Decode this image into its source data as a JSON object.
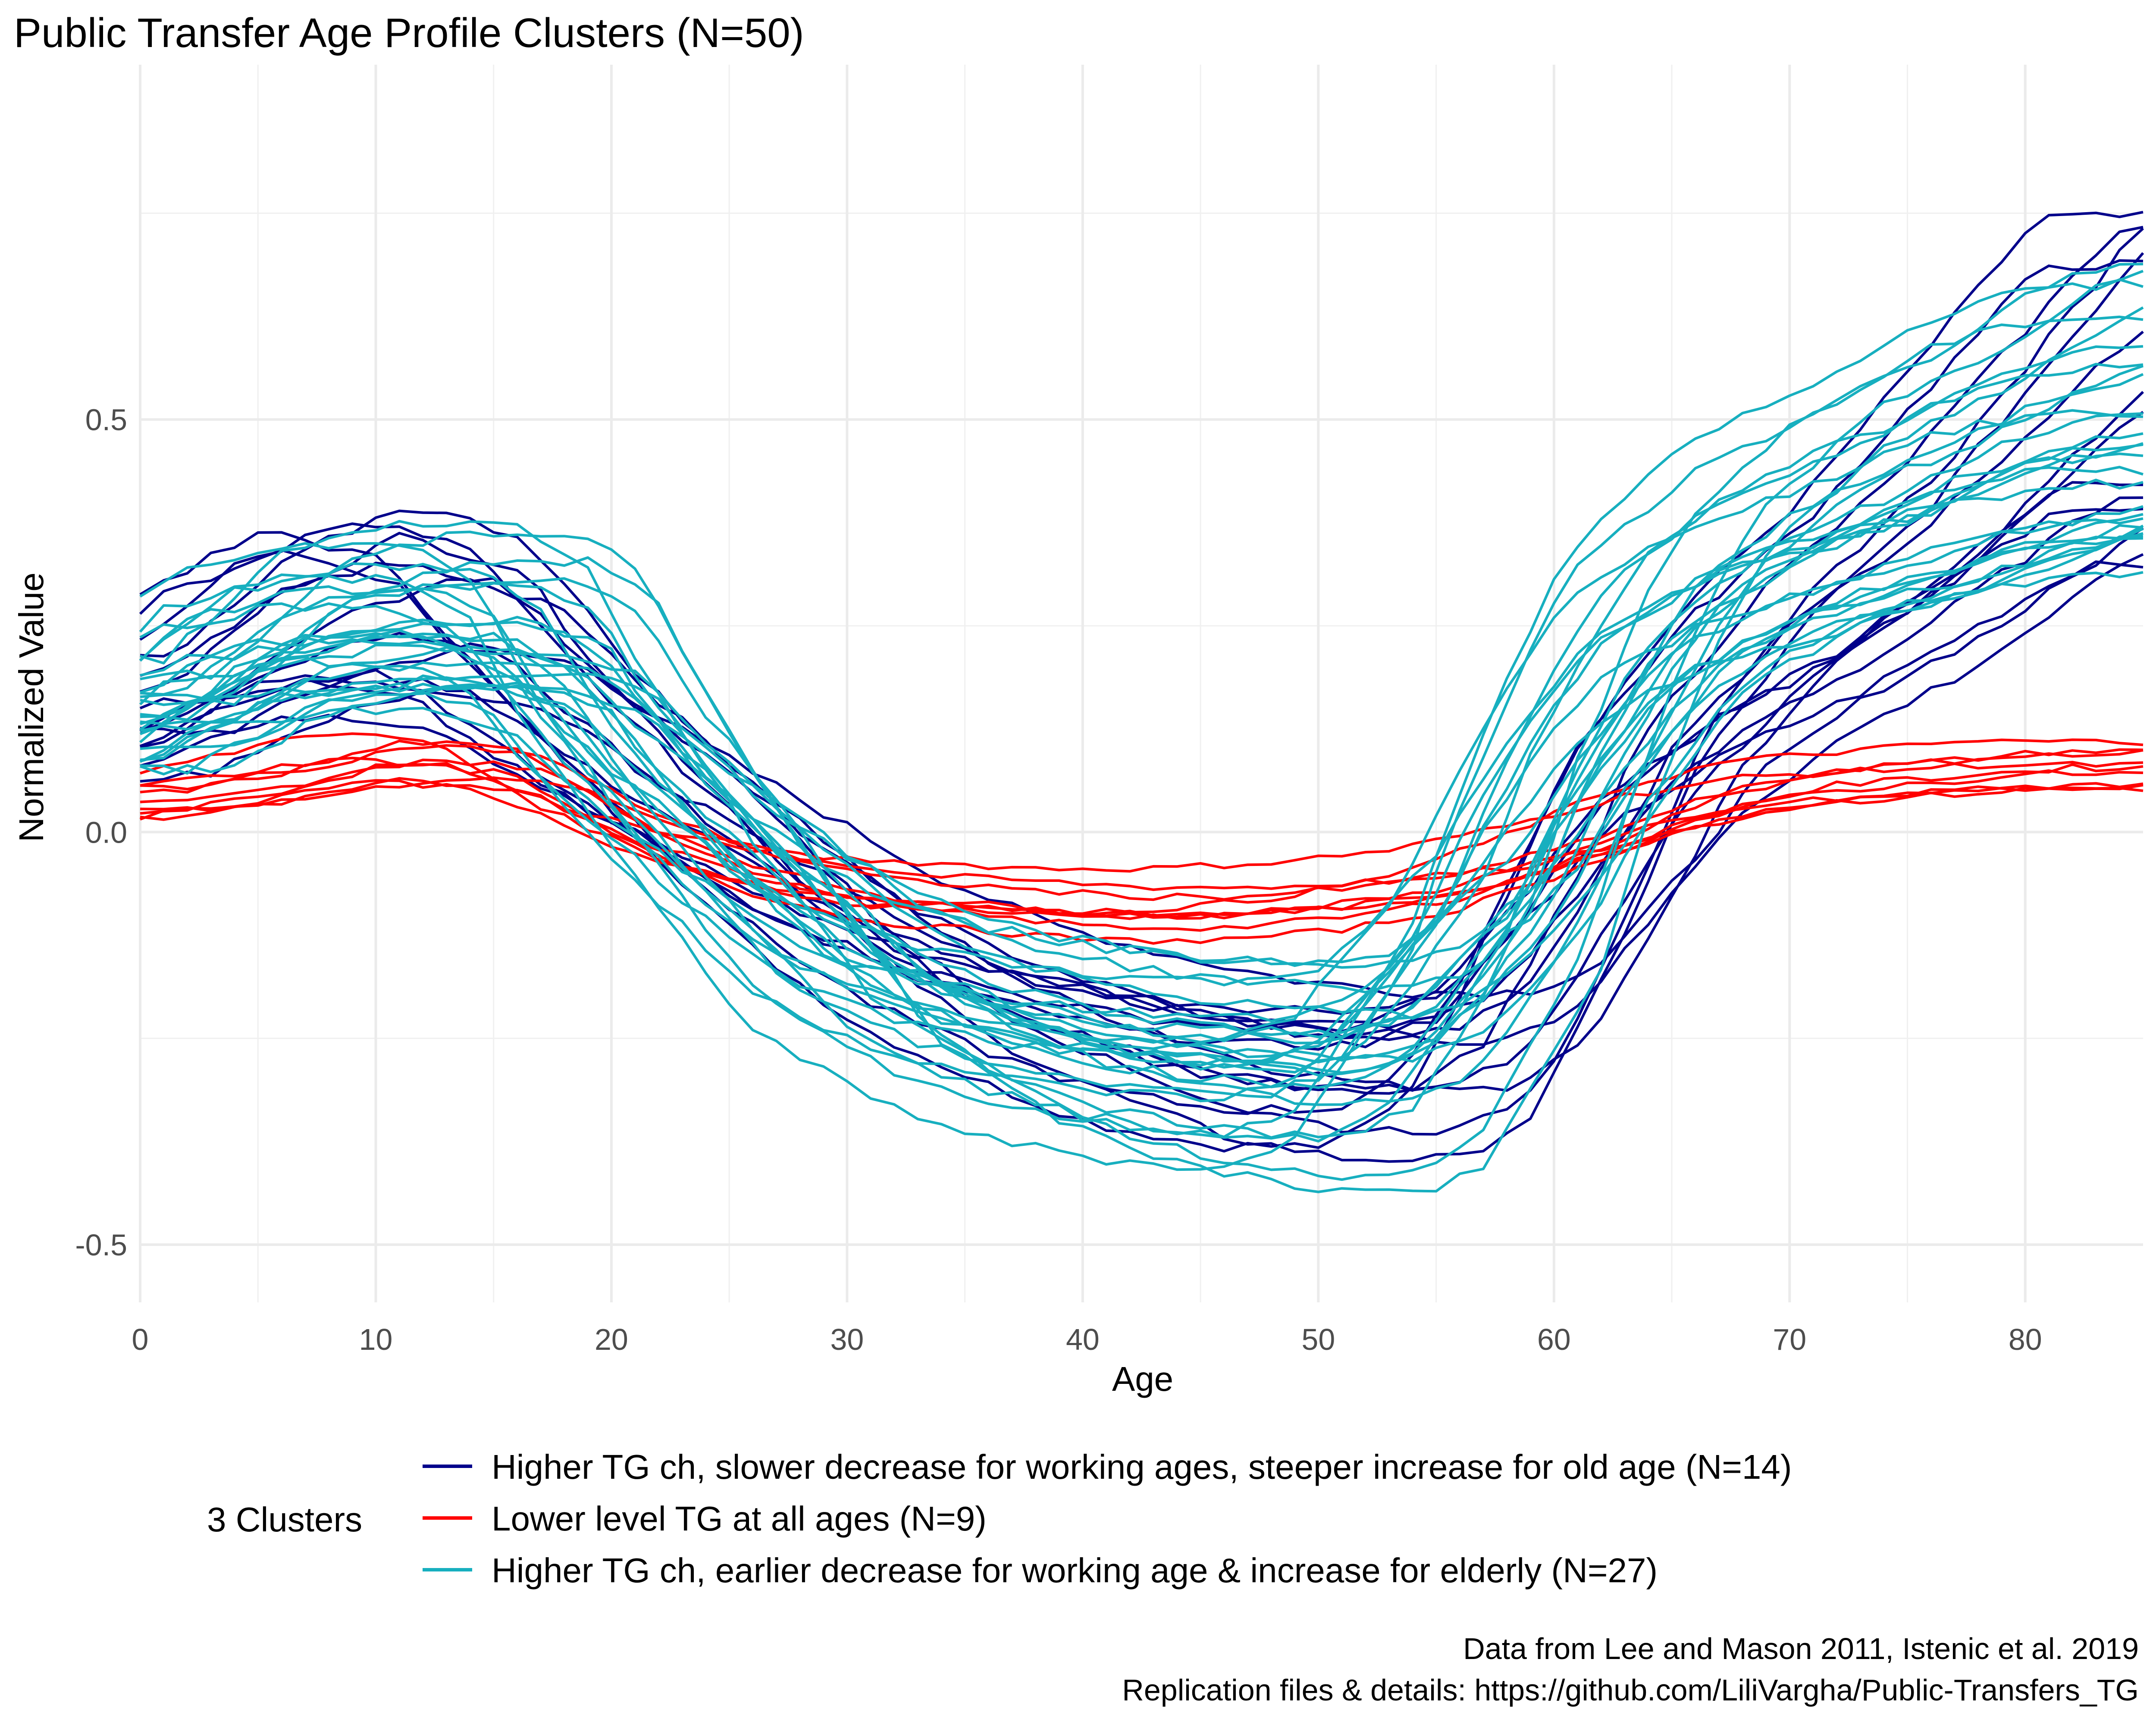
{
  "chart_data": {
    "type": "line",
    "title": "Public Transfer Age Profile Clusters (N=50)",
    "xlabel": "Age",
    "ylabel": "Normalized Value",
    "xlim": [
      0,
      85
    ],
    "ylim": [
      -0.57,
      0.93
    ],
    "x_ticks": [
      0,
      10,
      20,
      30,
      40,
      50,
      60,
      70,
      80
    ],
    "y_ticks": [
      -0.5,
      0.0,
      0.5
    ],
    "y_tick_labels": [
      "-0.5",
      "0.0",
      "0.5"
    ],
    "grid": true,
    "legend": {
      "title": "3 Clusters",
      "position": "bottom"
    },
    "series": [
      {
        "name": "Higher TG ch, slower decrease for working ages, steeper increase for old age (N=14)",
        "color": "#00008B",
        "count": 14,
        "profile_points": [
          [
            0,
            0.15
          ],
          [
            5,
            0.24
          ],
          [
            10,
            0.29
          ],
          [
            15,
            0.26
          ],
          [
            18,
            0.18
          ],
          [
            20,
            0.13
          ],
          [
            25,
            0.02
          ],
          [
            30,
            -0.09
          ],
          [
            35,
            -0.17
          ],
          [
            40,
            -0.22
          ],
          [
            45,
            -0.26
          ],
          [
            50,
            -0.28
          ],
          [
            55,
            -0.28
          ],
          [
            58,
            -0.24
          ],
          [
            60,
            -0.16
          ],
          [
            63,
            -0.02
          ],
          [
            65,
            0.08
          ],
          [
            70,
            0.22
          ],
          [
            75,
            0.32
          ],
          [
            80,
            0.45
          ],
          [
            85,
            0.58
          ]
        ]
      },
      {
        "name": "Lower level TG at all ages (N=9)",
        "color": "#FF0000",
        "count": 9,
        "profile_points": [
          [
            0,
            0.04
          ],
          [
            5,
            0.06
          ],
          [
            10,
            0.09
          ],
          [
            15,
            0.08
          ],
          [
            20,
            0.01
          ],
          [
            25,
            -0.04
          ],
          [
            30,
            -0.07
          ],
          [
            35,
            -0.08
          ],
          [
            40,
            -0.09
          ],
          [
            45,
            -0.09
          ],
          [
            50,
            -0.08
          ],
          [
            55,
            -0.06
          ],
          [
            60,
            -0.02
          ],
          [
            65,
            0.03
          ],
          [
            70,
            0.06
          ],
          [
            75,
            0.07
          ],
          [
            80,
            0.08
          ],
          [
            85,
            0.08
          ]
        ]
      },
      {
        "name": "Higher TG ch, earlier decrease for working age & increase for elderly (N=27)",
        "color": "#17AFBF",
        "count": 27,
        "profile_points": [
          [
            0,
            0.14
          ],
          [
            5,
            0.24
          ],
          [
            10,
            0.27
          ],
          [
            15,
            0.27
          ],
          [
            18,
            0.23
          ],
          [
            20,
            0.14
          ],
          [
            25,
            -0.03
          ],
          [
            30,
            -0.18
          ],
          [
            35,
            -0.25
          ],
          [
            40,
            -0.29
          ],
          [
            45,
            -0.31
          ],
          [
            50,
            -0.32
          ],
          [
            53,
            -0.29
          ],
          [
            55,
            -0.22
          ],
          [
            58,
            -0.1
          ],
          [
            60,
            0.04
          ],
          [
            63,
            0.2
          ],
          [
            65,
            0.28
          ],
          [
            70,
            0.38
          ],
          [
            75,
            0.43
          ],
          [
            80,
            0.5
          ],
          [
            85,
            0.53
          ]
        ]
      }
    ]
  },
  "caption": {
    "line1": "Data from Lee and Mason 2011, Istenic et al. 2019",
    "line2": "Replication files & details: https://github.com/LiliVargha/Public-Transfers_TG"
  }
}
